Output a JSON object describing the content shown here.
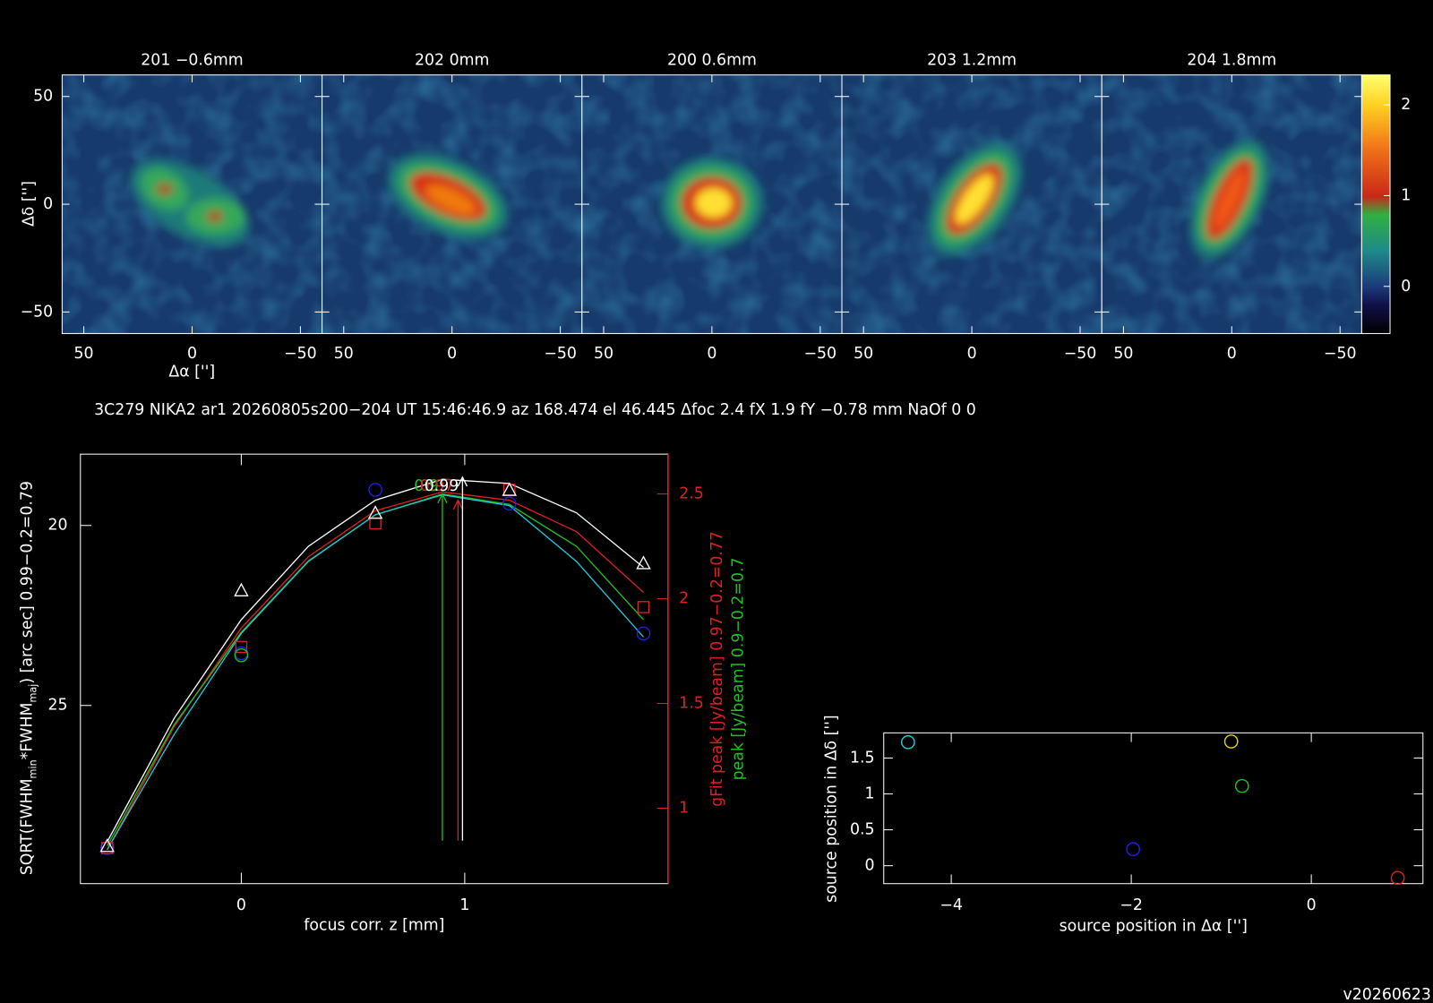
{
  "header": "3C279 NIKA2 ar1 20260805s200−204 UT 15:46:46.9 az 168.474 el 46.445 Δfoc 2.4 fX 1.9 fY −0.78 mm NaOf 0 0",
  "footer": "v20260623",
  "chart_data": [
    {
      "type": "image",
      "panel_titles": [
        "201 −0.6mm",
        "202 0mm",
        "200 0.6mm",
        "203 1.2mm",
        "204 1.8mm"
      ],
      "xlabel": "Δα ['']",
      "ylabel": "Δδ ['']",
      "xlim": [
        60,
        -60
      ],
      "ylim": [
        -60,
        60
      ],
      "xticks": [
        50,
        0,
        {
          "value": -50,
          "label": "−50"
        }
      ],
      "yticks": [
        {
          "value": -50,
          "label": "−50"
        },
        0,
        50
      ],
      "clim": [
        -0.52,
        2.33
      ],
      "cticks": [
        0,
        1,
        2
      ]
    },
    {
      "type": "line",
      "xlabel": "focus corr. z [mm]",
      "ylabel": [
        "SQRT(FWHM",
        "min",
        "*FWHM",
        "maj",
        ") [arc sec] 0.99−0.2=0.79"
      ],
      "y2labels": [
        {
          "text": "gFit peak [Jy/beam] 0.97−0.2=0.77",
          "color": "#e02020"
        },
        {
          "text": "peak [Jy/beam] 0.9−0.2=0.7",
          "color": "#20c020"
        }
      ],
      "xlim": [
        -0.72,
        1.91
      ],
      "xticks": [
        0,
        1
      ],
      "ylim": [
        29.95,
        18.02
      ],
      "yticks": [
        20,
        25
      ],
      "y2lim": [
        0.64,
        2.69
      ],
      "y2ticks": [
        1,
        1.5,
        2,
        2.5
      ],
      "x": [
        -0.6,
        0,
        0.6,
        1.2,
        1.8
      ],
      "series": [
        {
          "marker": "circle",
          "color": "#2020e0",
          "values": [
            28.96,
            23.55,
            19.01,
            19.39,
            23.0
          ]
        },
        {
          "marker": "square",
          "color": "#e02020",
          "axis": "y2",
          "values": [
            0.81,
            1.77,
            2.36,
            2.52,
            1.96
          ]
        },
        {
          "marker": "triangle",
          "color": "#ffffff",
          "axis": "y2",
          "values": [
            0.82,
            2.04,
            2.41,
            2.52,
            2.17
          ]
        },
        {
          "marker": "circle",
          "color": "#20c020",
          "axis": "y2",
          "values": [
            null,
            1.73,
            null,
            null,
            null
          ]
        }
      ],
      "fit_x": [
        -0.6,
        -0.3,
        0,
        0.3,
        0.6,
        0.9,
        1.2,
        1.5,
        1.8
      ],
      "fits": [
        {
          "color": "#ffffff",
          "axis": "y2",
          "values": [
            0.84,
            1.43,
            1.9,
            2.25,
            2.47,
            2.57,
            2.55,
            2.41,
            2.15
          ]
        },
        {
          "color": "#e02020",
          "axis": "y2",
          "values": [
            0.8,
            1.39,
            1.86,
            2.2,
            2.42,
            2.51,
            2.47,
            2.32,
            2.03
          ]
        },
        {
          "color": "#20c020",
          "axis": "y2",
          "values": [
            0.82,
            1.4,
            1.84,
            2.18,
            2.4,
            2.5,
            2.45,
            2.25,
            1.9
          ]
        },
        {
          "color": "#20c8d8",
          "values": [
            29.0,
            25.8,
            23.0,
            21.0,
            19.7,
            19.15,
            19.45,
            21.0,
            23.1
          ]
        }
      ],
      "arrows": [
        {
          "x": 0.9,
          "y": 2.5,
          "label": "0.9",
          "color": "#20c020"
        },
        {
          "x": 0.97,
          "y": 2.47,
          "label": "0.97",
          "color": "#e02020"
        },
        {
          "x": 0.99,
          "y": 2.58,
          "label": "0.99",
          "color": "#ffffff"
        }
      ]
    },
    {
      "type": "scatter",
      "xlabel": "source position in Δα ['']",
      "ylabel": "source position in Δδ ['']",
      "xlim": [
        -4.75,
        1.24
      ],
      "xticks": [
        {
          "value": -4,
          "label": "−4"
        },
        {
          "value": -2,
          "label": "−2"
        },
        0
      ],
      "ylim": [
        -0.25,
        1.85
      ],
      "yticks": [
        0,
        0.5,
        1,
        1.5
      ],
      "x": [
        -4.48,
        -1.98,
        -0.89,
        -0.77,
        0.96
      ],
      "values": [
        1.72,
        0.23,
        1.73,
        1.11,
        -0.17
      ],
      "colors": [
        "#20c8d8",
        "#2020e0",
        "#e0d020",
        "#20c020",
        "#e02020"
      ]
    }
  ]
}
